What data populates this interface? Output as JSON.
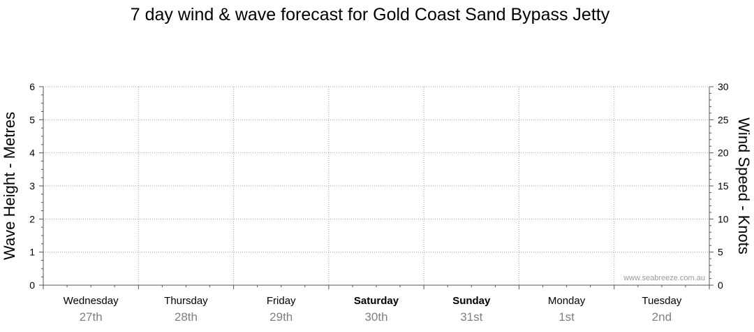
{
  "chart_data": {
    "type": "line",
    "title": "7 day wind & wave forecast for Gold Coast Sand Bypass Jetty",
    "ylabel_left": "Wave Height - Metres",
    "ylabel_right": "Wind Speed - Knots",
    "ylim_left": [
      0,
      6
    ],
    "ylim_right": [
      0,
      30
    ],
    "yticks_left": [
      "0",
      "1",
      "2",
      "3",
      "4",
      "5",
      "6"
    ],
    "yticks_right": [
      "0",
      "5",
      "10",
      "15",
      "20",
      "25",
      "30"
    ],
    "grid": true,
    "days": [
      {
        "day": "Wednesday",
        "date": "27th",
        "weekend": false
      },
      {
        "day": "Thursday",
        "date": "28th",
        "weekend": false
      },
      {
        "day": "Friday",
        "date": "29th",
        "weekend": false
      },
      {
        "day": "Saturday",
        "date": "30th",
        "weekend": true
      },
      {
        "day": "Sunday",
        "date": "31st",
        "weekend": true
      },
      {
        "day": "Monday",
        "date": "1st",
        "weekend": false
      },
      {
        "day": "Tuesday",
        "date": "2nd",
        "weekend": false
      }
    ],
    "series": [],
    "watermark": "www.seabreeze.com.au"
  }
}
